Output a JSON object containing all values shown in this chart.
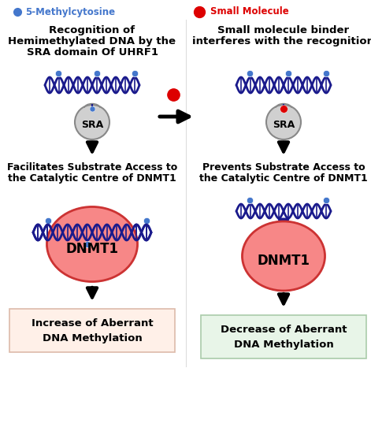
{
  "bg_color": "#ffffff",
  "dna_color": "#1a1a8c",
  "dot_blue": "#4477cc",
  "dot_red": "#dd0000",
  "sra_fill_top": "#d0d0d0",
  "sra_fill_bot": "#b0b0b0",
  "sra_edge": "#888888",
  "dnmt1_fill": "#f88080",
  "dnmt1_fill_center": "#ffcccc",
  "dnmt1_edge": "#cc3333",
  "arrow_color": "#111111",
  "box_left_fill": "#fff0e8",
  "box_right_fill": "#e8f5e8",
  "box_left_edge": "#ddbbaa",
  "box_right_edge": "#aaccaa",
  "legend_blue_label": "5-Methylcytosine",
  "legend_red_label": "Small Molecule",
  "left_title1": "Recognition of",
  "left_title2": "Hemimethylated DNA by the",
  "left_title3": "SRA domain Of UHRF1",
  "right_title1": "Small molecule binder",
  "right_title2": "interferes with the recognition",
  "left_mid_text1": "Facilitates Substrate Access to",
  "left_mid_text2": "the Catalytic Centre of DNMT1",
  "right_mid_text1": "Prevents Substrate Access to",
  "right_mid_text2": "the Catalytic Centre of DNMT1",
  "left_box_text1": "Increase of Aberrant",
  "left_box_text2": "DNA Methylation",
  "right_box_text1": "Decrease of Aberrant",
  "right_box_text2": "DNA Methylation",
  "dnmt1_text": "DNMT1",
  "sra_text": "SRA"
}
